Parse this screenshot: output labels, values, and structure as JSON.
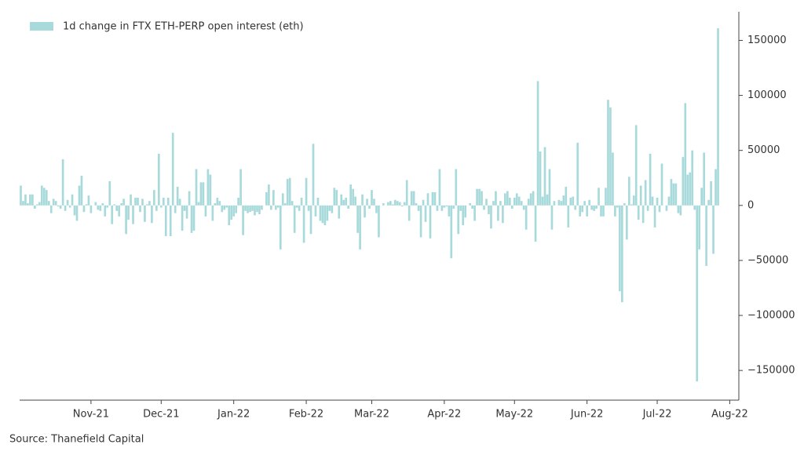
{
  "chart_data": {
    "type": "bar",
    "series": [
      {
        "name": "1d change in FTX ETH-PERP open interest (eth)",
        "color": "#a9dadb",
        "values": [
          18000,
          4000,
          10000,
          2000,
          10000,
          10000,
          -3000,
          1000,
          3000,
          18000,
          16000,
          14000,
          4000,
          -7000,
          6000,
          4000,
          -1000,
          -3000,
          42000,
          -5000,
          5000,
          -2000,
          10000,
          -9000,
          -14000,
          18000,
          27000,
          -6000,
          1000,
          9000,
          -7000,
          0,
          3000,
          -4000,
          -5000,
          2000,
          -10000,
          -2000,
          22000,
          -17000,
          1000,
          -5000,
          -10000,
          2000,
          6000,
          -26000,
          -13000,
          10000,
          -17000,
          7000,
          7000,
          -6000,
          6000,
          -15000,
          1000,
          4000,
          -16000,
          14000,
          -5000,
          47000,
          -2000,
          7000,
          -28000,
          7000,
          -28000,
          66000,
          -7000,
          17000,
          6000,
          -23000,
          -5000,
          -12000,
          13000,
          -25000,
          -23000,
          33000,
          3000,
          21000,
          21000,
          -10000,
          33000,
          28000,
          -14000,
          2000,
          7000,
          4000,
          -6000,
          -4000,
          -2000,
          -18000,
          -13000,
          -10000,
          -7000,
          7000,
          33000,
          -27000,
          -5000,
          -7000,
          -6000,
          -5000,
          -9000,
          -6000,
          -8000,
          -4000,
          0,
          12000,
          19000,
          -4000,
          14000,
          -4000,
          -2000,
          -40000,
          11000,
          2000,
          24000,
          25000,
          4000,
          -25000,
          -2000,
          -5000,
          7000,
          -34000,
          25000,
          -5000,
          -26000,
          56000,
          -10000,
          7000,
          -14000,
          -16000,
          -18000,
          -14000,
          -5000,
          -7000,
          16000,
          14000,
          -12000,
          10000,
          5000,
          7000,
          -3000,
          19000,
          15000,
          8000,
          -25000,
          -40000,
          10000,
          -11000,
          6000,
          -3000,
          14000,
          6000,
          -7000,
          -29000,
          0,
          2000,
          0,
          3000,
          4000,
          1000,
          5000,
          4000,
          3000,
          -1000,
          3000,
          23000,
          -14000,
          13000,
          13000,
          2000,
          -5000,
          -29000,
          5000,
          -15000,
          11000,
          -30000,
          12000,
          12000,
          -5000,
          33000,
          -5000,
          -2000,
          -1000,
          -10000,
          -48000,
          -3000,
          33000,
          -26000,
          -5000,
          -18000,
          -11000,
          0,
          2000,
          -3000,
          -14000,
          15000,
          15000,
          13000,
          -4000,
          6000,
          -8000,
          -21000,
          4000,
          13000,
          -14000,
          4000,
          -16000,
          11000,
          13000,
          7000,
          -3000,
          7000,
          11000,
          8000,
          4000,
          -4000,
          -22000,
          6000,
          11000,
          13000,
          -33000,
          113000,
          49000,
          8000,
          53000,
          10000,
          33000,
          -22000,
          4000,
          0,
          5000,
          4000,
          9000,
          17000,
          -20000,
          7000,
          8000,
          -4000,
          57000,
          -10000,
          -6000,
          4000,
          -10000,
          5000,
          -4000,
          -5000,
          -3000,
          16000,
          -10000,
          -10000,
          16000,
          96000,
          89000,
          48000,
          -10000,
          -2000,
          -78000,
          -88000,
          2000,
          -31000,
          26000,
          1000,
          9000,
          73000,
          -13000,
          18000,
          -16000,
          23000,
          -5000,
          47000,
          8000,
          -20000,
          7000,
          -6000,
          38000,
          0,
          -5000,
          8000,
          24000,
          20000,
          20000,
          -7000,
          -9000,
          44000,
          93000,
          28000,
          30000,
          50000,
          -4000,
          -160000,
          -40000,
          16000,
          48000,
          -55000,
          5000,
          22000,
          -44000,
          33000,
          161000,
          null,
          null,
          null,
          null,
          null
        ]
      }
    ],
    "categories": [
      null,
      null,
      null,
      null,
      null,
      null,
      null,
      null,
      null,
      null,
      null,
      null,
      null,
      null,
      null,
      null,
      null,
      null,
      null,
      null,
      null,
      null,
      null,
      null,
      null,
      null,
      null,
      null,
      null,
      null,
      "Nov-21",
      null,
      null,
      null,
      null,
      null,
      null,
      null,
      null,
      null,
      null,
      null,
      null,
      null,
      null,
      null,
      null,
      null,
      null,
      null,
      null,
      null,
      null,
      null,
      null,
      null,
      null,
      null,
      null,
      null,
      "Dec-21",
      null,
      null,
      null,
      null,
      null,
      null,
      null,
      null,
      null,
      null,
      null,
      null,
      null,
      null,
      null,
      null,
      null,
      null,
      null,
      null,
      null,
      null,
      null,
      null,
      null,
      null,
      null,
      null,
      null,
      null,
      "Jan-22",
      null,
      null,
      null,
      null,
      null,
      null,
      null,
      null,
      null,
      null,
      null,
      null,
      null,
      null,
      null,
      null,
      null,
      null,
      null,
      null,
      null,
      null,
      null,
      null,
      null,
      null,
      null,
      null,
      null,
      null,
      "Feb-22",
      null,
      null,
      null,
      null,
      null,
      null,
      null,
      null,
      null,
      null,
      null,
      null,
      null,
      null,
      null,
      null,
      null,
      null,
      null,
      null,
      null,
      null,
      null,
      null,
      null,
      null,
      null,
      "Mar-22",
      null,
      null,
      null,
      null,
      null,
      null,
      null,
      null,
      null,
      null,
      null,
      null,
      null,
      null,
      null,
      null,
      null,
      null,
      null,
      null,
      null,
      null,
      null,
      null,
      null,
      null,
      null,
      null,
      null,
      null,
      "Apr-22",
      null,
      null,
      null,
      null,
      null,
      null,
      null,
      null,
      null,
      null,
      null,
      null,
      null,
      null,
      null,
      null,
      null,
      null,
      null,
      null,
      null,
      null,
      null,
      null,
      null,
      null,
      null,
      null,
      null,
      "May-22",
      null,
      null,
      null,
      null,
      null,
      null,
      null,
      null,
      null,
      null,
      null,
      null,
      null,
      null,
      null,
      null,
      null,
      null,
      null,
      null,
      null,
      null,
      null,
      null,
      null,
      null,
      null,
      null,
      null,
      null,
      "Jun-22",
      null,
      null,
      null,
      null,
      null,
      null,
      null,
      null,
      null,
      null,
      null,
      null,
      null,
      null,
      null,
      null,
      null,
      null,
      null,
      null,
      null,
      null,
      null,
      null,
      null,
      null,
      null,
      null,
      null,
      "Jul-22",
      null,
      null,
      null,
      null,
      null,
      null,
      null,
      null,
      null,
      null,
      null,
      null,
      null,
      null,
      null,
      null,
      null,
      null,
      null,
      null,
      null,
      null,
      null,
      null,
      null,
      null,
      null,
      null,
      null,
      null,
      "Aug-22"
    ],
    "ylim": [
      -177000,
      176000
    ],
    "yticks": [
      {
        "value": -150000,
        "label": "−150000"
      },
      {
        "value": -100000,
        "label": "−100000"
      },
      {
        "value": -50000,
        "label": "−50000"
      },
      0,
      50000,
      100000,
      150000
    ],
    "legend": "top-left",
    "source": "Source: Thanefield Capital"
  }
}
